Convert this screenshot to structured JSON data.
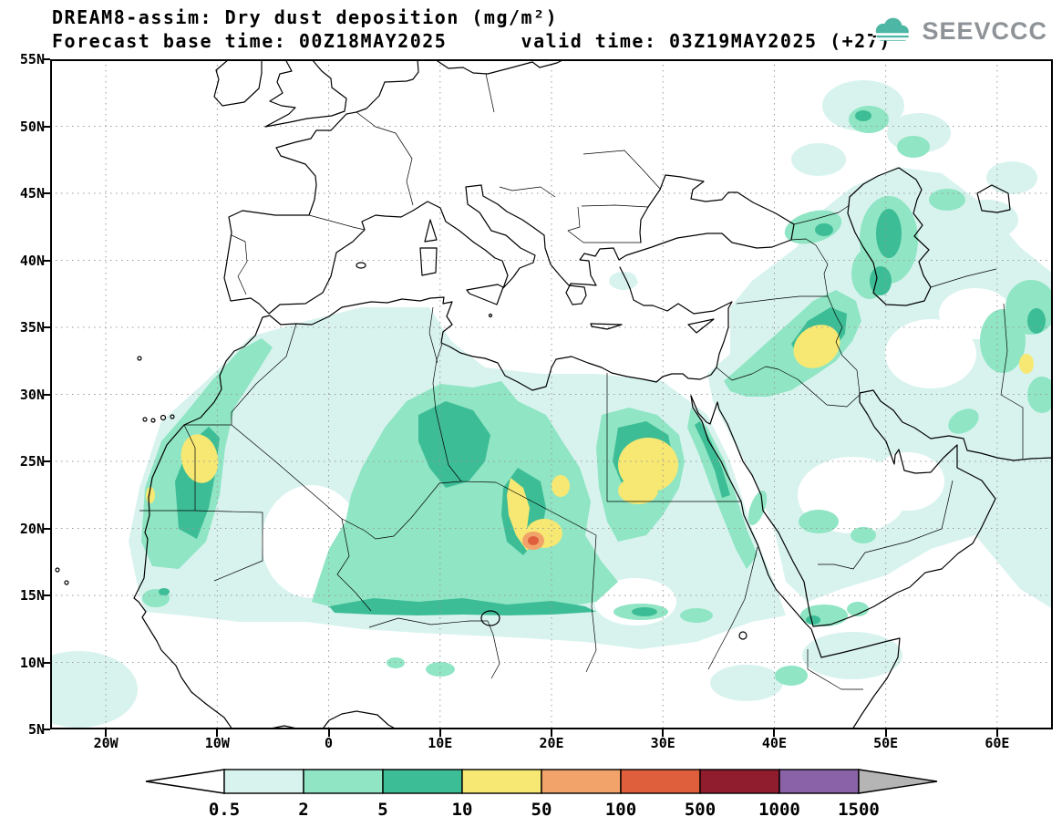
{
  "header": {
    "title": "DREAM8-assim: Dry dust deposition (mg/m²)",
    "subtitle": "Forecast base time: 00Z18MAY2025      valid time: 03Z19MAY2025 (+27)"
  },
  "logo": {
    "text": "SEEVCCC"
  },
  "map": {
    "lon_min": -25,
    "lon_max": 65,
    "lat_min": 5,
    "lat_max": 55,
    "lat_ticks": [
      {
        "label": "55N",
        "value": 55
      },
      {
        "label": "50N",
        "value": 50
      },
      {
        "label": "45N",
        "value": 45
      },
      {
        "label": "40N",
        "value": 40
      },
      {
        "label": "35N",
        "value": 35
      },
      {
        "label": "30N",
        "value": 30
      },
      {
        "label": "25N",
        "value": 25
      },
      {
        "label": "20N",
        "value": 20
      },
      {
        "label": "15N",
        "value": 15
      },
      {
        "label": "10N",
        "value": 10
      },
      {
        "label": "5N",
        "value": 5
      }
    ],
    "lon_ticks": [
      {
        "label": "20W",
        "value": -20
      },
      {
        "label": "10W",
        "value": -10
      },
      {
        "label": "0",
        "value": 0
      },
      {
        "label": "10E",
        "value": 10
      },
      {
        "label": "20E",
        "value": 20
      },
      {
        "label": "30E",
        "value": 30
      },
      {
        "label": "40E",
        "value": 40
      },
      {
        "label": "50E",
        "value": 50
      },
      {
        "label": "60E",
        "value": 60
      }
    ]
  },
  "colorbar": {
    "boundaries": [
      "0.5",
      "2",
      "5",
      "10",
      "50",
      "100",
      "500",
      "1000",
      "1500"
    ],
    "colors": [
      "#ffffff",
      "#d8f3ee",
      "#8fe5c4",
      "#3dbd96",
      "#f6e873",
      "#f2a369",
      "#df5f3d",
      "#8f1d2e",
      "#8a62a8",
      "#b5b5b5"
    ],
    "accent_teal": "#4db6a5"
  }
}
